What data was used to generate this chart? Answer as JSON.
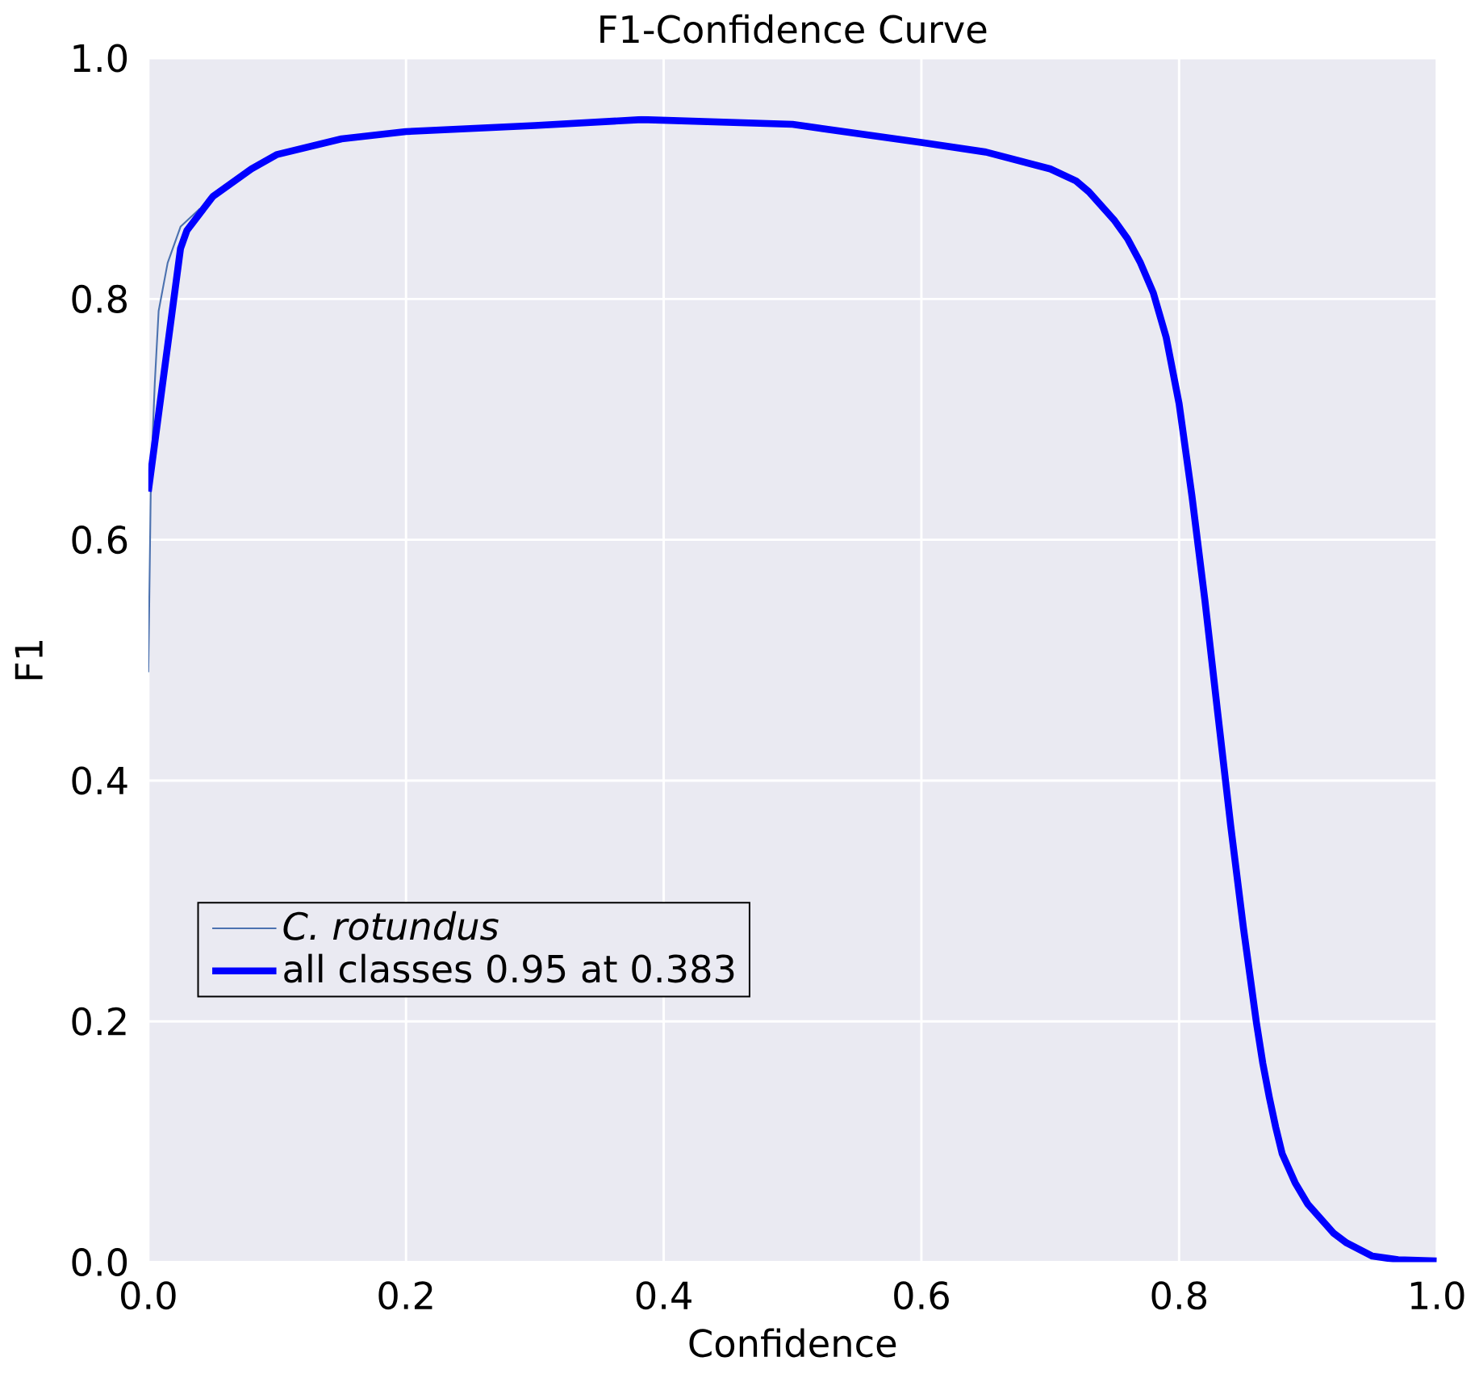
{
  "chart_data": {
    "type": "line",
    "title": "F1-Confidence Curve",
    "xlabel": "Confidence",
    "ylabel": "F1",
    "xlim": [
      0,
      1
    ],
    "ylim": [
      0,
      1
    ],
    "xticks": [
      {
        "value": 0,
        "label": "0.0"
      },
      0.2,
      0.4,
      0.6,
      0.8,
      {
        "value": 1,
        "label": "1.0"
      }
    ],
    "yticks": [
      {
        "value": 0,
        "label": "0.0"
      },
      0.2,
      0.4,
      0.6,
      0.8,
      {
        "value": 1,
        "label": "1.0"
      }
    ],
    "grid": true,
    "legend": "bottom left",
    "marker": "none",
    "line_style": "solid",
    "series": [
      {
        "name": "C. rotundus",
        "color": "#4c72b0",
        "x": [
          0,
          0.002,
          0.005,
          0.008,
          0.015,
          0.025,
          0.04
        ],
        "values": [
          0.49,
          0.65,
          0.73,
          0.79,
          0.83,
          0.86,
          0.875
        ]
      },
      {
        "name": "all classes 0.95 at 0.383",
        "color": "#0000ff",
        "x": [
          0,
          0.025,
          0.03,
          0.05,
          0.08,
          0.1,
          0.15,
          0.2,
          0.3,
          0.383,
          0.5,
          0.6,
          0.65,
          0.7,
          0.72,
          0.73,
          0.75,
          0.76,
          0.77,
          0.78,
          0.79,
          0.8,
          0.81,
          0.82,
          0.83,
          0.84,
          0.85,
          0.86,
          0.865,
          0.87,
          0.875,
          0.88,
          0.89,
          0.9,
          0.92,
          0.93,
          0.95,
          0.97,
          1.0
        ],
        "values": [
          0.64,
          0.842,
          0.857,
          0.885,
          0.908,
          0.92,
          0.933,
          0.939,
          0.944,
          0.949,
          0.945,
          0.93,
          0.922,
          0.908,
          0.898,
          0.889,
          0.865,
          0.85,
          0.83,
          0.805,
          0.768,
          0.713,
          0.636,
          0.55,
          0.456,
          0.363,
          0.277,
          0.199,
          0.165,
          0.137,
          0.112,
          0.09,
          0.066,
          0.048,
          0.024,
          0.016,
          0.005,
          0.002,
          0.001
        ]
      }
    ]
  }
}
